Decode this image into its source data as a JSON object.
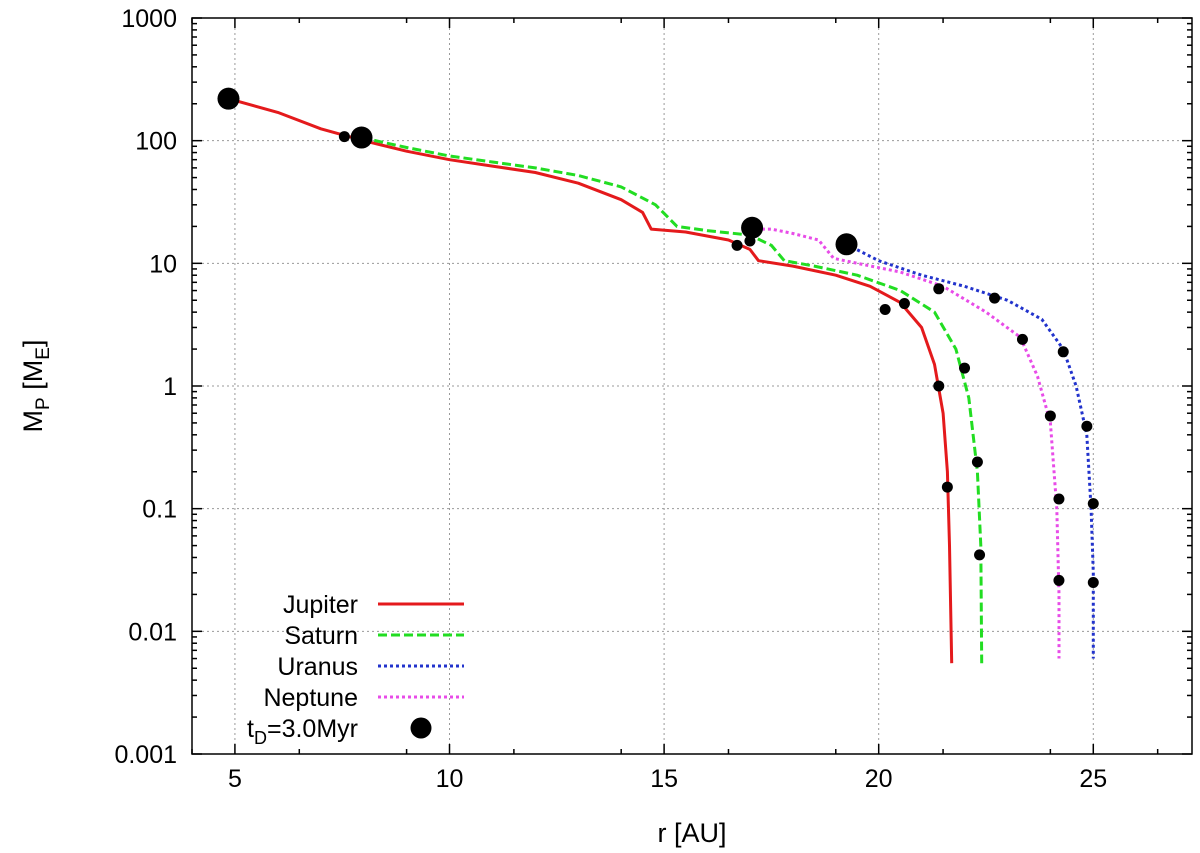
{
  "chart_data": {
    "type": "line",
    "title": "",
    "xlabel": "r [AU]",
    "ylabel_main": "M",
    "ylabel_sub1": "P",
    "ylabel_mid": " [M",
    "ylabel_sub2": "E",
    "ylabel_end": "]",
    "xlim": [
      4,
      27.3
    ],
    "ylim": [
      0.001,
      1000
    ],
    "yscale": "log",
    "grid": true,
    "legend_position": "bottom-left",
    "x_ticks": [
      5,
      10,
      15,
      20,
      25
    ],
    "y_ticks": [
      {
        "value": 0.001,
        "label": "0.001"
      },
      {
        "value": 0.01,
        "label": "0.01"
      },
      {
        "value": 0.1,
        "label": "0.1"
      },
      {
        "value": 1,
        "label": "1"
      },
      {
        "value": 10,
        "label": "10"
      },
      {
        "value": 100,
        "label": "100"
      },
      {
        "value": 1000,
        "label": "1000"
      }
    ],
    "series": [
      {
        "name": "Jupiter",
        "color": "#e41a1c",
        "style": "solid",
        "points": [
          [
            4.85,
            220
          ],
          [
            6.0,
            170
          ],
          [
            7.0,
            125
          ],
          [
            8.0,
            100
          ],
          [
            9.0,
            82
          ],
          [
            10.0,
            70
          ],
          [
            11.0,
            62
          ],
          [
            12.0,
            55
          ],
          [
            13.0,
            45
          ],
          [
            14.0,
            33
          ],
          [
            14.5,
            26
          ],
          [
            14.7,
            19
          ],
          [
            15.5,
            18
          ],
          [
            16.5,
            15.5
          ],
          [
            17.0,
            13
          ],
          [
            17.2,
            10.5
          ],
          [
            18.0,
            9.5
          ],
          [
            19.0,
            8
          ],
          [
            19.8,
            6.5
          ],
          [
            20.5,
            4.8
          ],
          [
            21.0,
            3
          ],
          [
            21.3,
            1.5
          ],
          [
            21.5,
            0.6
          ],
          [
            21.6,
            0.2
          ],
          [
            21.65,
            0.05
          ],
          [
            21.7,
            0.0055
          ]
        ]
      },
      {
        "name": "Saturn",
        "color": "#22dd22",
        "style": "dashed",
        "points": [
          [
            7.95,
            106
          ],
          [
            9.0,
            88
          ],
          [
            10.0,
            75
          ],
          [
            11.0,
            67
          ],
          [
            12.0,
            60
          ],
          [
            13.0,
            52
          ],
          [
            14.0,
            42
          ],
          [
            14.8,
            30
          ],
          [
            15.3,
            20
          ],
          [
            16.0,
            18.5
          ],
          [
            17.0,
            17
          ],
          [
            17.5,
            14
          ],
          [
            17.8,
            10.5
          ],
          [
            18.5,
            9.5
          ],
          [
            19.5,
            8
          ],
          [
            20.5,
            6
          ],
          [
            21.3,
            4
          ],
          [
            21.8,
            2
          ],
          [
            22.1,
            0.8
          ],
          [
            22.3,
            0.2
          ],
          [
            22.38,
            0.05
          ],
          [
            22.4,
            0.0055
          ]
        ]
      },
      {
        "name": "Uranus",
        "color": "#2233cc",
        "style": "dotted",
        "points": [
          [
            19.25,
            14.3
          ],
          [
            20.0,
            10.5
          ],
          [
            21.0,
            8
          ],
          [
            22.0,
            6.5
          ],
          [
            23.0,
            5
          ],
          [
            23.8,
            3.5
          ],
          [
            24.3,
            2
          ],
          [
            24.6,
            1
          ],
          [
            24.85,
            0.4
          ],
          [
            24.95,
            0.1
          ],
          [
            25.0,
            0.03
          ],
          [
            25.0,
            0.006
          ]
        ]
      },
      {
        "name": "Neptune",
        "color": "#e84ce8",
        "style": "dotted",
        "points": [
          [
            17.0,
            19
          ],
          [
            17.5,
            19
          ],
          [
            18.0,
            17.5
          ],
          [
            18.6,
            15.5
          ],
          [
            18.95,
            11
          ],
          [
            19.5,
            10
          ],
          [
            20.5,
            8.5
          ],
          [
            21.5,
            6.5
          ],
          [
            22.5,
            4
          ],
          [
            23.3,
            2.5
          ],
          [
            23.7,
            1.2
          ],
          [
            24.0,
            0.5
          ],
          [
            24.15,
            0.1
          ],
          [
            24.2,
            0.02
          ],
          [
            24.2,
            0.006
          ]
        ]
      }
    ],
    "markers_small": [
      [
        7.55,
        108
      ],
      [
        16.7,
        14
      ],
      [
        17.0,
        15.2
      ],
      [
        20.15,
        4.2
      ],
      [
        20.6,
        4.7
      ],
      [
        21.4,
        6.2
      ],
      [
        22.7,
        5.2
      ],
      [
        23.35,
        2.4
      ],
      [
        24.3,
        1.9
      ],
      [
        21.4,
        1.0
      ],
      [
        22.0,
        1.4
      ],
      [
        24.0,
        0.57
      ],
      [
        24.85,
        0.47
      ],
      [
        21.6,
        0.15
      ],
      [
        22.3,
        0.24
      ],
      [
        24.2,
        0.12
      ],
      [
        25.0,
        0.11
      ],
      [
        22.35,
        0.042
      ],
      [
        24.2,
        0.026
      ],
      [
        25.0,
        0.025
      ]
    ],
    "markers_large": [
      [
        4.85,
        220
      ],
      [
        7.95,
        106
      ],
      [
        17.05,
        19.5
      ],
      [
        19.25,
        14.3
      ]
    ],
    "legend_marker_label_main": "t",
    "legend_marker_label_sub": "D",
    "legend_marker_label_rest": "=3.0Myr"
  }
}
